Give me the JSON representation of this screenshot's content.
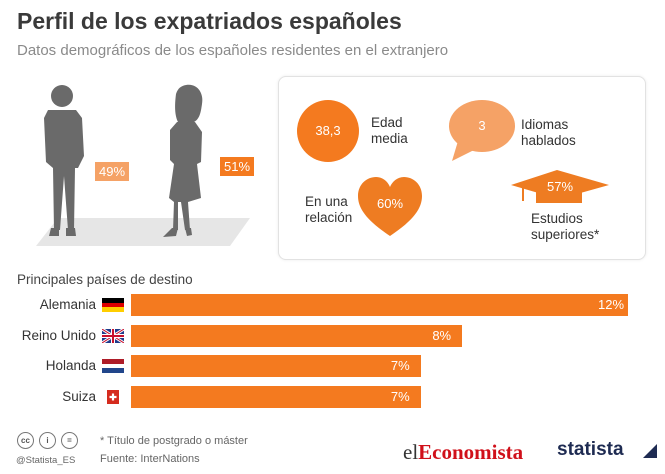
{
  "header": {
    "title": "Perfil de los expatriados españoles",
    "subtitle": "Datos demográficos de los españoles residentes en el extranjero"
  },
  "gender": {
    "men_pct": "49%",
    "women_pct": "51%"
  },
  "stats": {
    "age_value": "38,3",
    "age_label": "Edad\nmedia",
    "languages_value": "3",
    "languages_label": "Idiomas\nhablados",
    "relationship_value": "60%",
    "relationship_label": "En una\nrelación",
    "studies_value": "57%",
    "studies_label": "Estudios\nsuperiores*"
  },
  "chart_data": {
    "type": "bar",
    "title": "Principales países de destino",
    "orientation": "horizontal",
    "categories": [
      "Alemania",
      "Reino Unido",
      "Holanda",
      "Suiza"
    ],
    "values": [
      12,
      8,
      7,
      7
    ],
    "value_labels": [
      "12%",
      "8%",
      "7%",
      "7%"
    ],
    "unit": "%",
    "xlim": [
      0,
      12
    ],
    "color": "#f47a1f",
    "grid": false,
    "legend": "none"
  },
  "footer": {
    "note": "* Título de postgrado o máster",
    "source": "Fuente: InterNations",
    "handle": "@Statista_ES",
    "cc_icons": [
      "cc-icon",
      "by-icon",
      "equals-icon"
    ]
  },
  "logos": {
    "economista_prefix": "el",
    "economista_brand": "Economista",
    "statista": "statista"
  },
  "colors": {
    "accent": "#f47a1f",
    "figure": "#6a6a6a",
    "title": "#3a3a3a"
  }
}
